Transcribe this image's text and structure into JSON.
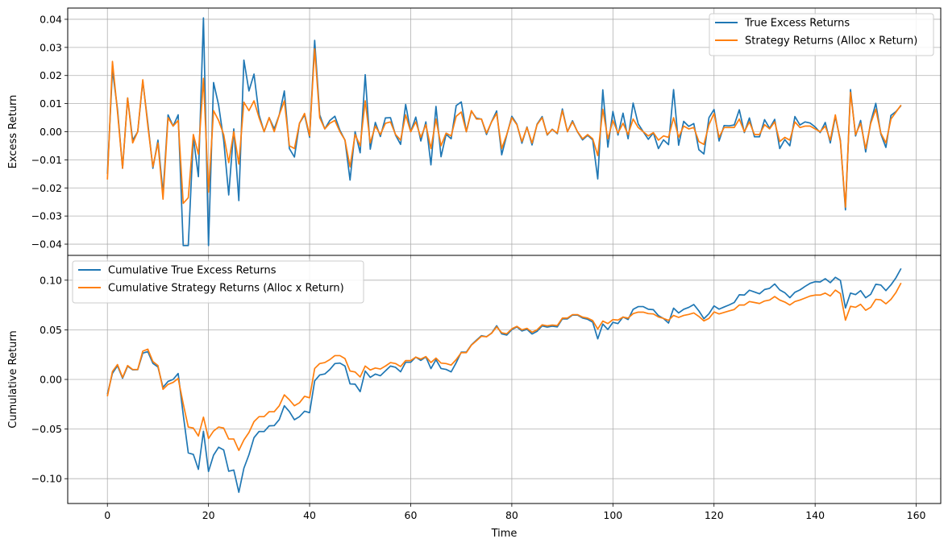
{
  "chart_data": [
    {
      "type": "line",
      "ylabel": "Excess Return",
      "xlim": [
        -7.85,
        164.85
      ],
      "ylim": [
        -0.044,
        0.044
      ],
      "yticks": [
        -0.04,
        -0.03,
        -0.02,
        -0.01,
        0.0,
        0.01,
        0.02,
        0.03,
        0.04
      ],
      "ytick_labels": [
        "−0.04",
        "−0.03",
        "−0.02",
        "−0.01",
        "0.00",
        "0.01",
        "0.02",
        "0.03",
        "0.04"
      ],
      "xticks": [
        0,
        20,
        40,
        60,
        80,
        100,
        120,
        140,
        160
      ],
      "grid": true,
      "legend_position": "upper right",
      "series": [
        {
          "name": "True Excess Returns",
          "color": "#1f77b4",
          "values": [
            -0.015,
            0.022,
            0.008,
            -0.013,
            0.012,
            -0.003,
            0.0,
            0.018,
            0.003,
            -0.013,
            -0.003,
            -0.022,
            0.006,
            0.002,
            0.006,
            -0.0405,
            -0.0405,
            -0.002,
            -0.016,
            0.0405,
            -0.0405,
            0.0175,
            0.0095,
            -0.003,
            -0.0225,
            0.001,
            -0.0245,
            0.0255,
            0.0145,
            0.0205,
            0.006,
            0.0,
            0.005,
            0.001,
            0.006,
            0.0145,
            -0.006,
            -0.009,
            0.003,
            0.006,
            -0.002,
            0.0325,
            0.006,
            0.001,
            0.004,
            0.0055,
            0.0005,
            -0.003,
            -0.0172,
            0.0,
            -0.0075,
            0.0203,
            -0.0062,
            0.0033,
            -0.0017,
            0.0049,
            0.005,
            -0.0012,
            -0.0045,
            0.0097,
            0.0,
            0.0052,
            -0.0033,
            0.0035,
            -0.0118,
            0.009,
            -0.0089,
            -0.0009,
            -0.0025,
            0.0093,
            0.0106,
            0.0,
            0.0073,
            0.0048,
            0.0045,
            -0.001,
            0.0036,
            0.0074,
            -0.0082,
            -0.0012,
            0.0055,
            0.0027,
            -0.0041,
            0.0017,
            -0.0047,
            0.0027,
            0.0054,
            -0.0012,
            0.0009,
            -0.0007,
            0.0081,
            0.0,
            0.0039,
            -0.0001,
            -0.0029,
            -0.0013,
            -0.0029,
            -0.0168,
            0.0149,
            -0.0055,
            0.0072,
            -0.0012,
            0.0066,
            -0.0025,
            0.0102,
            0.0028,
            0.0,
            -0.0027,
            -0.0004,
            -0.006,
            -0.0029,
            -0.0046,
            0.015,
            -0.0048,
            0.0037,
            0.0019,
            0.0029,
            -0.0064,
            -0.0079,
            0.005,
            0.0079,
            -0.0033,
            0.0022,
            0.0021,
            0.0024,
            0.0078,
            -0.0003,
            0.0049,
            -0.0018,
            -0.0018,
            0.0043,
            0.0012,
            0.0044,
            -0.006,
            -0.0028,
            -0.005,
            0.0054,
            0.0024,
            0.0035,
            0.0031,
            0.0017,
            -0.0003,
            0.0033,
            -0.004,
            0.0054,
            -0.0031,
            -0.0278,
            0.015,
            -0.0015,
            0.004,
            -0.0072,
            0.0035,
            0.0101,
            -0.0008,
            -0.0056,
            0.0058,
            0.0072,
            0.0093
          ]
        },
        {
          "name": "Strategy Returns (Alloc x Return)",
          "color": "#ff7f0e",
          "values": [
            -0.017,
            0.025,
            0.007,
            -0.013,
            0.012,
            -0.004,
            0.0,
            0.0185,
            0.002,
            -0.0125,
            -0.004,
            -0.024,
            0.005,
            0.002,
            0.004,
            -0.0255,
            -0.0235,
            -0.001,
            -0.008,
            0.019,
            -0.0215,
            0.0075,
            0.004,
            -0.001,
            -0.011,
            0.0,
            -0.0115,
            0.0105,
            0.0075,
            0.011,
            0.005,
            0.0,
            0.005,
            0.0,
            0.006,
            0.011,
            -0.005,
            -0.006,
            0.003,
            0.0065,
            -0.0015,
            0.0295,
            0.005,
            0.001,
            0.003,
            0.004,
            0.0,
            -0.003,
            -0.0125,
            -0.001,
            -0.005,
            0.011,
            -0.004,
            0.002,
            -0.001,
            0.003,
            0.0035,
            -0.001,
            -0.003,
            0.006,
            0.0,
            0.0035,
            -0.002,
            0.0025,
            -0.006,
            0.0045,
            -0.005,
            -0.0005,
            -0.0015,
            0.0055,
            0.007,
            0.0,
            0.0075,
            0.0045,
            0.0045,
            -0.0005,
            0.0035,
            0.0065,
            -0.006,
            -0.001,
            0.005,
            0.0025,
            -0.0035,
            0.0015,
            -0.004,
            0.0025,
            0.005,
            -0.001,
            0.0008,
            -0.0005,
            0.0075,
            0.0,
            0.0035,
            0.0,
            -0.0025,
            -0.001,
            -0.0025,
            -0.0085,
            0.008,
            -0.0025,
            0.004,
            -0.0005,
            0.003,
            -0.001,
            0.0045,
            0.0015,
            0.0,
            -0.0015,
            -0.0003,
            -0.003,
            -0.0015,
            -0.002,
            0.005,
            -0.002,
            0.002,
            0.001,
            0.0015,
            -0.0035,
            -0.0045,
            0.0025,
            0.0065,
            -0.002,
            0.0015,
            0.0015,
            0.0015,
            0.0045,
            0.0,
            0.0035,
            -0.001,
            -0.001,
            0.0025,
            0.001,
            0.0035,
            -0.0035,
            -0.002,
            -0.003,
            0.0035,
            0.0015,
            0.002,
            0.002,
            0.001,
            0.0,
            0.002,
            -0.003,
            0.006,
            -0.0035,
            -0.0268,
            0.014,
            -0.001,
            0.003,
            -0.006,
            0.003,
            0.008,
            -0.0005,
            -0.004,
            0.0045,
            0.007,
            0.0095
          ]
        }
      ]
    },
    {
      "type": "line",
      "xlabel": "Time",
      "ylabel": "Cumulative Return",
      "xlim": [
        -7.85,
        164.85
      ],
      "ylim": [
        -0.125,
        0.125
      ],
      "yticks": [
        -0.1,
        -0.05,
        0.0,
        0.05,
        0.1
      ],
      "ytick_labels": [
        "−0.10",
        "−0.05",
        "0.00",
        "0.05",
        "0.10"
      ],
      "xticks": [
        0,
        20,
        40,
        60,
        80,
        100,
        120,
        140,
        160
      ],
      "grid": true,
      "legend_position": "upper left",
      "series": [
        {
          "name": "Cumulative True Excess Returns",
          "color": "#1f77b4",
          "values": [
            -0.015,
            0.0062,
            0.0138,
            0.0012,
            0.0133,
            0.0097,
            0.0098,
            0.0265,
            0.028,
            0.0162,
            0.0125,
            -0.008,
            -0.002,
            0.0,
            0.006,
            -0.0355,
            -0.074,
            -0.0755,
            -0.0906,
            -0.0522,
            -0.0927,
            -0.0763,
            -0.0683,
            -0.071,
            -0.0925,
            -0.0913,
            -0.1137,
            -0.0895,
            -0.0759,
            -0.0587,
            -0.0524,
            -0.0525,
            -0.0468,
            -0.0465,
            -0.0404,
            -0.0265,
            -0.0324,
            -0.0406,
            -0.0375,
            -0.032,
            -0.0335,
            -0.0015,
            0.0045,
            0.0055,
            0.01,
            0.016,
            0.0165,
            0.0135,
            -0.0045,
            -0.0048,
            -0.0123,
            0.0085,
            0.0021,
            0.0054,
            0.0037,
            0.0086,
            0.0135,
            0.0122,
            0.0077,
            0.0173,
            0.0173,
            0.0225,
            0.0192,
            0.0227,
            0.0109,
            0.0199,
            0.011,
            0.0101,
            0.0076,
            0.0169,
            0.0275,
            0.0275,
            0.0348,
            0.0396,
            0.0441,
            0.0431,
            0.0467,
            0.0541,
            0.0459,
            0.0447,
            0.0502,
            0.0529,
            0.0488,
            0.0505,
            0.0458,
            0.0485,
            0.0539,
            0.0527,
            0.0536,
            0.0529,
            0.061,
            0.061,
            0.0649,
            0.0648,
            0.0619,
            0.0606,
            0.0577,
            0.0409,
            0.0558,
            0.0503,
            0.0575,
            0.0563,
            0.0629,
            0.0604,
            0.0706,
            0.0734,
            0.0734,
            0.0707,
            0.0703,
            0.0643,
            0.0614,
            0.0568,
            0.0718,
            0.067,
            0.0707,
            0.0726,
            0.0755,
            0.0691,
            0.0612,
            0.0662,
            0.0741,
            0.0708,
            0.073,
            0.0751,
            0.0775,
            0.0853,
            0.085,
            0.0899,
            0.0881,
            0.0863,
            0.0906,
            0.0918,
            0.0962,
            0.0902,
            0.0874,
            0.0824,
            0.0878,
            0.0902,
            0.0937,
            0.0968,
            0.0985,
            0.0982,
            0.1015,
            0.0975,
            0.1029,
            0.0998,
            0.072,
            0.087,
            0.0855,
            0.0895,
            0.0823,
            0.0858,
            0.0959,
            0.0951,
            0.0895,
            0.0953,
            0.1025,
            0.1118
          ]
        },
        {
          "name": "Cumulative Strategy Returns (Alloc x Return)",
          "color": "#ff7f0e",
          "values": [
            -0.017,
            0.008,
            0.015,
            0.002,
            0.014,
            0.01,
            0.01,
            0.0285,
            0.0305,
            0.018,
            0.014,
            -0.01,
            -0.005,
            -0.003,
            0.001,
            -0.0245,
            -0.048,
            -0.049,
            -0.057,
            -0.038,
            -0.0595,
            -0.052,
            -0.048,
            -0.049,
            -0.06,
            -0.06,
            -0.0715,
            -0.061,
            -0.0535,
            -0.0425,
            -0.0375,
            -0.0375,
            -0.0325,
            -0.0325,
            -0.0265,
            -0.0155,
            -0.0205,
            -0.0265,
            -0.0235,
            -0.017,
            -0.0185,
            0.011,
            0.016,
            0.017,
            0.02,
            0.024,
            0.024,
            0.021,
            0.0085,
            0.0075,
            0.0025,
            0.0135,
            0.0095,
            0.0115,
            0.0105,
            0.0135,
            0.017,
            0.016,
            0.013,
            0.019,
            0.019,
            0.0225,
            0.0205,
            0.023,
            0.017,
            0.0215,
            0.0165,
            0.016,
            0.0145,
            0.02,
            0.027,
            0.027,
            0.0345,
            0.039,
            0.0435,
            0.043,
            0.0465,
            0.053,
            0.047,
            0.046,
            0.051,
            0.0535,
            0.05,
            0.0515,
            0.0475,
            0.05,
            0.055,
            0.054,
            0.0548,
            0.0543,
            0.0618,
            0.0618,
            0.0653,
            0.0653,
            0.0628,
            0.0618,
            0.0593,
            0.0508,
            0.0588,
            0.0563,
            0.0603,
            0.0598,
            0.0628,
            0.0618,
            0.0663,
            0.0678,
            0.0678,
            0.0663,
            0.066,
            0.063,
            0.0615,
            0.0595,
            0.0645,
            0.0625,
            0.0645,
            0.0655,
            0.067,
            0.0635,
            0.059,
            0.0615,
            0.068,
            0.066,
            0.0675,
            0.069,
            0.0705,
            0.075,
            0.075,
            0.0785,
            0.0775,
            0.0765,
            0.079,
            0.08,
            0.0835,
            0.08,
            0.078,
            0.075,
            0.0785,
            0.08,
            0.082,
            0.084,
            0.085,
            0.085,
            0.087,
            0.084,
            0.09,
            0.0865,
            0.0597,
            0.0737,
            0.0727,
            0.0757,
            0.0697,
            0.0727,
            0.0807,
            0.0802,
            0.0762,
            0.0807,
            0.0877,
            0.0972
          ]
        }
      ]
    }
  ]
}
